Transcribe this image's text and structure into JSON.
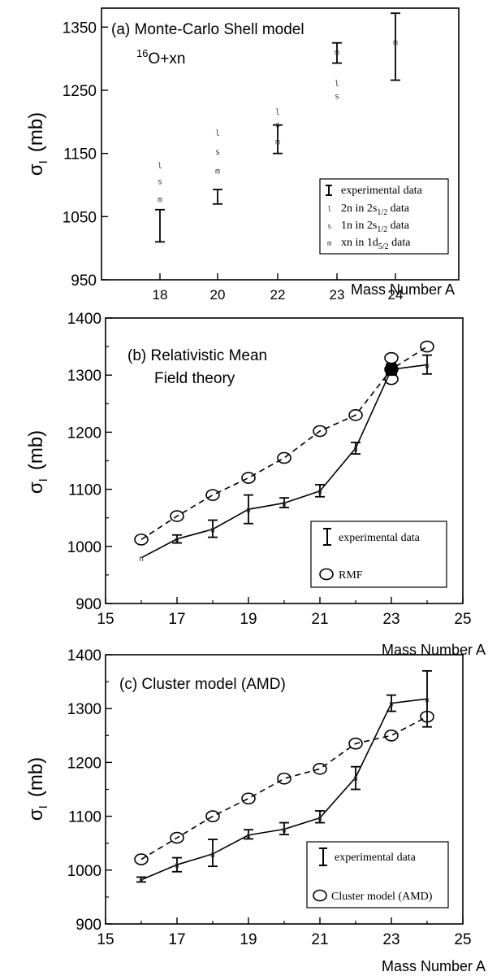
{
  "chart_data": [
    {
      "type": "scatter",
      "title": "(a) Monte-Carlo Shell model",
      "subtitle": {
        "sup": "16",
        "text": "O+xn"
      },
      "xlabel": "Mass Number A",
      "ylabel": {
        "main": "σ",
        "sub": "I",
        "unit": "(mb)"
      },
      "ylim": [
        950,
        1380
      ],
      "x_categories": [
        "18",
        "20",
        "22",
        "23",
        "24"
      ],
      "yticks": [
        950,
        1050,
        1150,
        1250,
        1350
      ],
      "legend": {
        "position": "bottom-right",
        "entries": [
          {
            "symbol": "errorbar",
            "text": "experimental data"
          },
          {
            "symbol": "l",
            "text": "2n in 2s",
            "sub": "1/2",
            "suffix": " data"
          },
          {
            "symbol": "s",
            "text": "1n in 2s",
            "sub": "1/2",
            "suffix": " data"
          },
          {
            "symbol": "m",
            "text": "xn in 1d",
            "sub": "5/2",
            "suffix": " data"
          }
        ]
      },
      "experimental": [
        {
          "x": "18",
          "y": 1035,
          "lo": 1010,
          "hi": 1061
        },
        {
          "x": "20",
          "y": 1081,
          "lo": 1070,
          "hi": 1093
        },
        {
          "x": "22",
          "y": 1172,
          "lo": 1150,
          "hi": 1195
        },
        {
          "x": "23",
          "y": 1308,
          "lo": 1293,
          "hi": 1325
        },
        {
          "x": "24",
          "y": 1318,
          "lo": 1266,
          "hi": 1372
        }
      ],
      "series": [
        {
          "symbol": "l",
          "points": [
            {
              "x": "18",
              "y": 1130
            },
            {
              "x": "20",
              "y": 1182
            },
            {
              "x": "22",
              "y": 1215
            },
            {
              "x": "23",
              "y": 1260
            }
          ]
        },
        {
          "symbol": "s",
          "points": [
            {
              "x": "18",
              "y": 1105
            },
            {
              "x": "20",
              "y": 1152
            },
            {
              "x": "22",
              "y": 1195
            },
            {
              "x": "23",
              "y": 1240
            }
          ]
        },
        {
          "symbol": "m",
          "points": [
            {
              "x": "18",
              "y": 1077
            },
            {
              "x": "20",
              "y": 1122
            },
            {
              "x": "22",
              "y": 1168
            },
            {
              "x": "23",
              "y": 1310
            },
            {
              "x": "24",
              "y": 1325
            }
          ]
        }
      ]
    },
    {
      "type": "line",
      "title": "(b) Relativistic Mean",
      "title_line2": "Field theory",
      "xlabel": "Mass Number A",
      "ylabel": {
        "main": "σ",
        "sub": "I",
        "unit": "(mb)"
      },
      "xlim": [
        15,
        25
      ],
      "ylim": [
        900,
        1400
      ],
      "xticks": [
        15,
        17,
        19,
        21,
        23,
        25
      ],
      "yticks": [
        900,
        1000,
        1100,
        1200,
        1300,
        1400
      ],
      "legend": {
        "position": "bottom-right",
        "entries": [
          {
            "symbol": "errorbar",
            "text": "experimental data"
          },
          {
            "symbol": "circle",
            "text": "RMF"
          }
        ]
      },
      "experimental": [
        {
          "x": 16,
          "y": 980,
          "lo": 980,
          "hi": 980
        },
        {
          "x": 17,
          "y": 1013,
          "lo": 1006,
          "hi": 1020
        },
        {
          "x": 18,
          "y": 1030,
          "lo": 1016,
          "hi": 1046
        },
        {
          "x": 19,
          "y": 1065,
          "lo": 1040,
          "hi": 1090
        },
        {
          "x": 20,
          "y": 1076,
          "lo": 1068,
          "hi": 1085
        },
        {
          "x": 21,
          "y": 1097,
          "lo": 1087,
          "hi": 1108
        },
        {
          "x": 22,
          "y": 1172,
          "lo": 1162,
          "hi": 1182
        },
        {
          "x": 23,
          "y": 1310,
          "lo": 1300,
          "hi": 1320
        },
        {
          "x": 24,
          "y": 1318,
          "lo": 1302,
          "hi": 1335
        }
      ],
      "rmf": [
        {
          "x": 16,
          "y": 1012
        },
        {
          "x": 17,
          "y": 1053
        },
        {
          "x": 18,
          "y": 1090
        },
        {
          "x": 19,
          "y": 1120
        },
        {
          "x": 20,
          "y": 1155
        },
        {
          "x": 21,
          "y": 1202
        },
        {
          "x": 22,
          "y": 1230
        },
        {
          "x": 23,
          "y": 1310
        },
        {
          "x": 24,
          "y": 1350
        }
      ],
      "rmf_extra": [
        {
          "x": 23,
          "y": 1330
        },
        {
          "x": 23,
          "y": 1293
        }
      ]
    },
    {
      "type": "line",
      "title": "(c) Cluster model (AMD)",
      "xlabel": "Mass Number A",
      "ylabel": {
        "main": "σ",
        "sub": "I",
        "unit": "(mb)"
      },
      "xlim": [
        15,
        25
      ],
      "ylim": [
        900,
        1400
      ],
      "xticks": [
        15,
        17,
        19,
        21,
        23,
        25
      ],
      "yticks": [
        900,
        1000,
        1100,
        1200,
        1300,
        1400
      ],
      "legend": {
        "position": "bottom-right",
        "entries": [
          {
            "symbol": "errorbar",
            "text": "experimental data"
          },
          {
            "symbol": "circle",
            "text": "Cluster model (AMD)"
          }
        ]
      },
      "experimental": [
        {
          "x": 16,
          "y": 982,
          "lo": 978,
          "hi": 987
        },
        {
          "x": 17,
          "y": 1010,
          "lo": 997,
          "hi": 1023
        },
        {
          "x": 18,
          "y": 1030,
          "lo": 1007,
          "hi": 1057
        },
        {
          "x": 19,
          "y": 1065,
          "lo": 1058,
          "hi": 1075
        },
        {
          "x": 20,
          "y": 1076,
          "lo": 1066,
          "hi": 1088
        },
        {
          "x": 21,
          "y": 1097,
          "lo": 1088,
          "hi": 1110
        },
        {
          "x": 22,
          "y": 1172,
          "lo": 1150,
          "hi": 1192
        },
        {
          "x": 23,
          "y": 1310,
          "lo": 1295,
          "hi": 1325
        },
        {
          "x": 24,
          "y": 1318,
          "lo": 1266,
          "hi": 1370
        }
      ],
      "model": [
        {
          "x": 16,
          "y": 1020
        },
        {
          "x": 17,
          "y": 1060
        },
        {
          "x": 18,
          "y": 1100
        },
        {
          "x": 19,
          "y": 1133
        },
        {
          "x": 20,
          "y": 1170
        },
        {
          "x": 21,
          "y": 1188
        },
        {
          "x": 22,
          "y": 1235
        },
        {
          "x": 23,
          "y": 1250
        },
        {
          "x": 24,
          "y": 1285
        }
      ]
    }
  ]
}
